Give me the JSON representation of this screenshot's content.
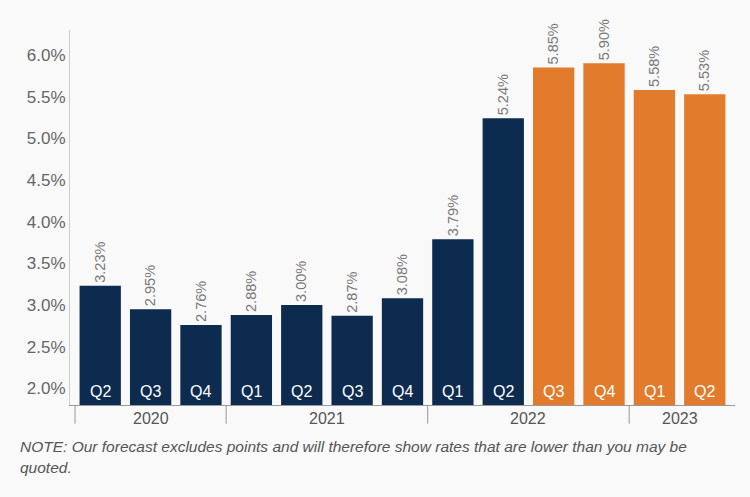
{
  "chart_data": {
    "type": "bar",
    "categories": [
      "Q2",
      "Q3",
      "Q4",
      "Q1",
      "Q2",
      "Q3",
      "Q4",
      "Q1",
      "Q2",
      "Q3",
      "Q4",
      "Q1",
      "Q2"
    ],
    "years": [
      "2020",
      "2020",
      "2020",
      "2021",
      "2021",
      "2021",
      "2021",
      "2022",
      "2022",
      "2022",
      "2022",
      "2023",
      "2023"
    ],
    "values": [
      3.23,
      2.95,
      2.76,
      2.88,
      3.0,
      2.87,
      3.08,
      3.79,
      5.24,
      5.85,
      5.9,
      5.58,
      5.53
    ],
    "value_labels": [
      "3.23%",
      "2.95%",
      "2.76%",
      "2.88%",
      "3.00%",
      "2.87%",
      "3.08%",
      "3.79%",
      "5.24%",
      "5.85%",
      "5.90%",
      "5.58%",
      "5.53%"
    ],
    "colors": [
      "#0d2b4e",
      "#0d2b4e",
      "#0d2b4e",
      "#0d2b4e",
      "#0d2b4e",
      "#0d2b4e",
      "#0d2b4e",
      "#0d2b4e",
      "#0d2b4e",
      "#e27b2c",
      "#e27b2c",
      "#e27b2c",
      "#e27b2c"
    ],
    "ylim": [
      1.8,
      6.3
    ],
    "yticks": [
      {
        "value": 2,
        "label": "2.0%"
      },
      {
        "value": 2.5,
        "label": "2.5%"
      },
      {
        "value": 3,
        "label": "3.0%"
      },
      {
        "value": 3.5,
        "label": "3.5%"
      },
      {
        "value": 4,
        "label": "4.0%"
      },
      {
        "value": 4.5,
        "label": "4.5%"
      },
      {
        "value": 5,
        "label": "5.0%"
      },
      {
        "value": 5.5,
        "label": "5.5%"
      },
      {
        "value": 6,
        "label": "6.0%"
      }
    ],
    "grid": false,
    "data_labels": true,
    "note": "NOTE: Our forecast excludes points and will therefore show rates that are lower than you may be quoted."
  }
}
